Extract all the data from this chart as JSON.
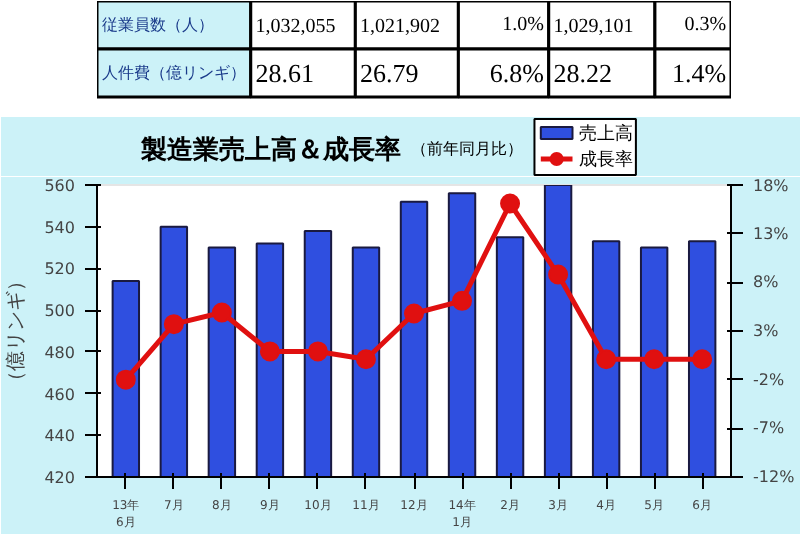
{
  "chart_data": {
    "type": "bar",
    "title": "製造業売上高＆成長率",
    "subtitle": "（前年同月比）",
    "ylabel": "（億リンギ）",
    "annotations": [
      "従業員数（人）",
      "1,032,055",
      "1,021,902",
      "1.0%",
      "1,029,101",
      "0.3%",
      "人件費（億リンギ）",
      "28.61",
      "26.79",
      "6.8%",
      "28.22",
      "1.4%"
    ],
    "categories": [
      "13年\n6月",
      "7月",
      "8月",
      "9月",
      "10月",
      "11月",
      "12月",
      "14年\n1月",
      "2月",
      "3月",
      "4月",
      "5月",
      "6月"
    ],
    "series": [
      {
        "name": "売上高",
        "color": "#2f4fe0",
        "values": [
          514,
          540,
          530,
          532,
          538,
          530,
          552,
          556,
          535,
          560,
          533,
          530,
          533
        ]
      },
      {
        "name": "成長率",
        "type": "line",
        "axis": "y2",
        "color": "#e01010",
        "marker": "circle",
        "values": [
          -2.0,
          3.7,
          4.9,
          0.9,
          0.9,
          0.1,
          4.8,
          6.1,
          16.1,
          8.8,
          0.1,
          0.1,
          0.1
        ]
      }
    ],
    "ylim": [
      420,
      560
    ],
    "yticks": [
      420,
      440,
      460,
      480,
      500,
      520,
      540,
      560
    ],
    "y2lim": [
      -12,
      18
    ],
    "y2ticks": [
      {
        "value": -12,
        "label": "-12%"
      },
      {
        "value": -7,
        "label": "-7%"
      },
      {
        "value": -2,
        "label": "-2%"
      },
      {
        "value": 3,
        "label": "3%"
      },
      {
        "value": 8,
        "label": "8%"
      },
      {
        "value": 13,
        "label": "13%"
      },
      {
        "value": 18,
        "label": "18%"
      }
    ],
    "grid": false,
    "legend": "top right"
  }
}
